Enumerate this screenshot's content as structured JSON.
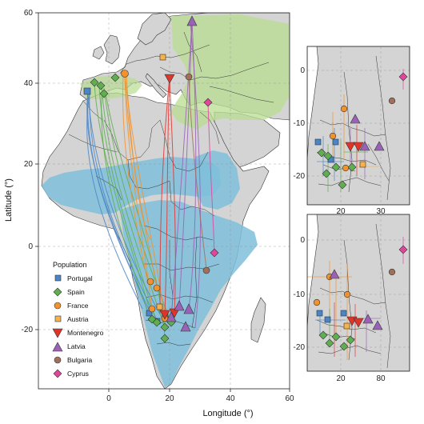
{
  "axes": {
    "xlabel": "Longitude (°)",
    "ylabel": "Latitude (°)",
    "xticks": [
      "0",
      "20",
      "40",
      "60"
    ],
    "yticks": [
      "60",
      "40",
      "20",
      "0",
      "-20"
    ]
  },
  "insets": [
    {
      "xticks": [
        "20",
        "30"
      ],
      "yticks": [
        "0",
        "-10",
        "-20"
      ]
    },
    {
      "xticks": [
        "20",
        "80"
      ],
      "yticks": [
        "0",
        "-10",
        "-20"
      ]
    }
  ],
  "legend": {
    "title": "Population",
    "items": [
      {
        "label": "Portugal",
        "marker": "square",
        "color": "#4a86c6"
      },
      {
        "label": "Spain",
        "marker": "diamond",
        "color": "#5fae4f"
      },
      {
        "label": "France",
        "marker": "circle",
        "color": "#f2922c"
      },
      {
        "label": "Austria",
        "marker": "square",
        "color": "#f7b24d"
      },
      {
        "label": "Montenegro",
        "marker": "triangle-down",
        "color": "#e0342b"
      },
      {
        "label": "Latvia",
        "marker": "triangle-up",
        "color": "#9a62b6"
      },
      {
        "label": "Bulgaria",
        "marker": "circle",
        "color": "#a0705a"
      },
      {
        "label": "Cyprus",
        "marker": "diamond",
        "color": "#e0459c"
      }
    ]
  },
  "colors": {
    "land": "#d4d4d4",
    "ocean": "#ffffff",
    "breeding_range": "#b9dd92",
    "wintering_range": "#7fbfdb",
    "borders": "#333333"
  }
}
